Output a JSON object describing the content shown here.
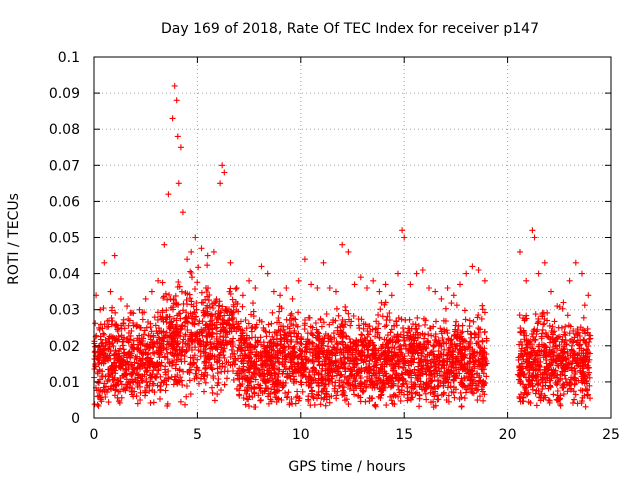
{
  "chart_data": {
    "type": "scatter",
    "title": "Day 169 of 2018, Rate Of TEC Index for receiver p147",
    "xlabel": "GPS time / hours",
    "ylabel": "ROTI / TECUs",
    "xlim": [
      0,
      25
    ],
    "ylim": [
      0,
      0.1
    ],
    "xticks": [
      0,
      5,
      10,
      15,
      20,
      25
    ],
    "xtick_labels": [
      "0",
      "5",
      "10",
      "15",
      "20",
      "25"
    ],
    "yticks": [
      0,
      0.01,
      0.02,
      0.03,
      0.04,
      0.05,
      0.06,
      0.07,
      0.08,
      0.09,
      0.1
    ],
    "ytick_labels": [
      "0",
      "0.01",
      "0.02",
      "0.03",
      "0.04",
      "0.05",
      "0.06",
      "0.07",
      "0.08",
      "0.09",
      "0.1"
    ],
    "grid": true,
    "marker": "+",
    "color": "#ff0000",
    "data_gap_hours": [
      19.0,
      20.5
    ],
    "series": [
      {
        "name": "ROTI p147",
        "x": [
          0.1,
          0.3,
          0.5,
          0.8,
          1.0,
          1.3,
          1.6,
          1.9,
          2.2,
          2.5,
          2.8,
          3.1,
          3.4,
          3.6,
          3.8,
          3.9,
          4.0,
          4.05,
          4.1,
          4.2,
          4.3,
          4.5,
          4.7,
          4.9,
          5.2,
          5.5,
          5.8,
          6.1,
          6.2,
          6.3,
          6.6,
          6.9,
          7.2,
          7.5,
          7.8,
          8.1,
          8.4,
          8.7,
          9.0,
          9.3,
          9.6,
          9.9,
          10.2,
          10.5,
          10.8,
          11.1,
          11.4,
          11.7,
          12.0,
          12.3,
          12.6,
          12.9,
          13.2,
          13.5,
          13.8,
          14.1,
          14.4,
          14.7,
          14.9,
          15.0,
          15.3,
          15.6,
          15.9,
          16.2,
          16.5,
          16.8,
          17.1,
          17.4,
          17.7,
          18.0,
          18.3,
          18.6,
          18.9,
          20.6,
          20.9,
          21.2,
          21.3,
          21.5,
          21.8,
          22.1,
          22.4,
          22.7,
          23.0,
          23.3,
          23.6,
          23.9
        ],
        "y": [
          0.034,
          0.03,
          0.043,
          0.035,
          0.045,
          0.033,
          0.031,
          0.029,
          0.03,
          0.033,
          0.035,
          0.038,
          0.048,
          0.062,
          0.083,
          0.092,
          0.088,
          0.078,
          0.065,
          0.075,
          0.057,
          0.044,
          0.046,
          0.05,
          0.047,
          0.045,
          0.046,
          0.065,
          0.07,
          0.068,
          0.043,
          0.036,
          0.034,
          0.038,
          0.036,
          0.042,
          0.04,
          0.035,
          0.034,
          0.036,
          0.033,
          0.038,
          0.044,
          0.037,
          0.036,
          0.043,
          0.036,
          0.035,
          0.048,
          0.046,
          0.037,
          0.039,
          0.036,
          0.038,
          0.035,
          0.037,
          0.034,
          0.04,
          0.052,
          0.05,
          0.037,
          0.04,
          0.041,
          0.036,
          0.035,
          0.033,
          0.036,
          0.034,
          0.037,
          0.04,
          0.042,
          0.041,
          0.038,
          0.046,
          0.038,
          0.052,
          0.05,
          0.04,
          0.043,
          0.035,
          0.031,
          0.032,
          0.038,
          0.043,
          0.04,
          0.034
        ]
      }
    ]
  }
}
